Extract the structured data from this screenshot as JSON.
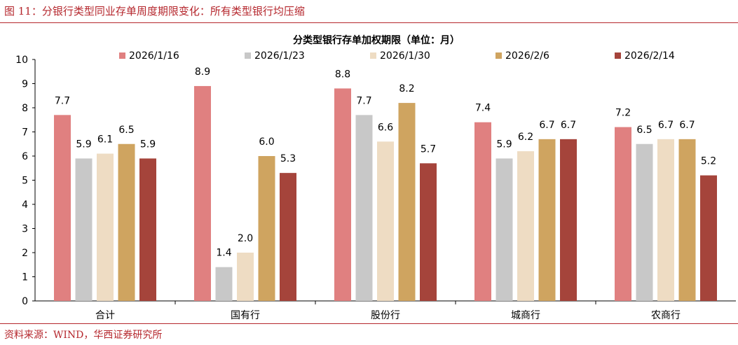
{
  "figure": {
    "caption": "图 11：分银行类型同业存单周度期限变化：所有类型银行均压缩",
    "source": "资料来源：WIND，华西证券研究所"
  },
  "colors": {
    "caption": "#b5272d",
    "series": [
      "#e08080",
      "#c8c8c8",
      "#eedcc3",
      "#cfa460",
      "#a5443b"
    ]
  },
  "chart_data": {
    "type": "bar",
    "title": "分类型银行存单加权期限（单位：月）",
    "categories": [
      "合计",
      "国有行",
      "股份行",
      "城商行",
      "农商行"
    ],
    "series": [
      {
        "name": "2026/1/16",
        "values": [
          7.7,
          8.9,
          8.8,
          7.4,
          7.2
        ]
      },
      {
        "name": "2026/1/23",
        "values": [
          5.9,
          1.4,
          7.7,
          5.9,
          6.5
        ]
      },
      {
        "name": "2026/1/30",
        "values": [
          6.1,
          2.0,
          6.6,
          6.2,
          6.7
        ]
      },
      {
        "name": "2026/2/6",
        "values": [
          6.5,
          6.0,
          8.2,
          6.7,
          6.7
        ]
      },
      {
        "name": "2026/2/14",
        "values": [
          5.9,
          5.3,
          5.7,
          6.7,
          5.2
        ]
      }
    ],
    "data_labels": [
      [
        "7.7",
        "5.9",
        "6.1",
        "6.5",
        "5.9"
      ],
      [
        "8.9",
        "1.4",
        "2.0",
        "6.0",
        "5.3"
      ],
      [
        "8.8",
        "7.7",
        "6.6",
        "8.2",
        "5.7"
      ],
      [
        "7.4",
        "5.9",
        "6.2",
        "6.7",
        "6.7"
      ],
      [
        "7.2",
        "6.5",
        "6.7",
        "6.7",
        "5.2"
      ]
    ],
    "yticks": [
      "0",
      "1",
      "2",
      "3",
      "4",
      "5",
      "6",
      "7",
      "8",
      "9",
      "10"
    ],
    "ylim": [
      0,
      10
    ],
    "grid": false,
    "legend_position": "top"
  }
}
